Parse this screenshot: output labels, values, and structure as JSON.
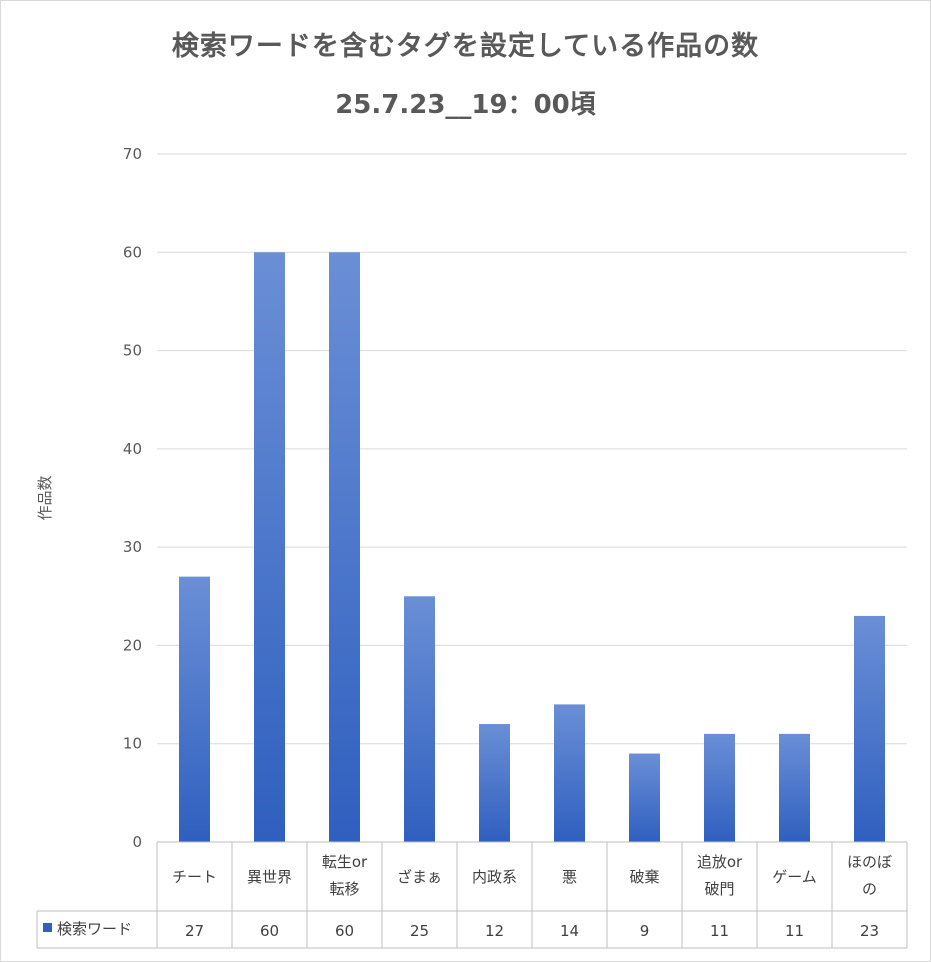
{
  "chart_data": {
    "type": "bar",
    "title": "検索ワードを含むタグを設定している作品の数",
    "subtitle": "25.7.23__19：00頃",
    "ylabel": "作品数",
    "xlabel": "",
    "ylim": [
      0,
      70
    ],
    "yticks": [
      0,
      10,
      20,
      30,
      40,
      50,
      60,
      70
    ],
    "grid": true,
    "categories": [
      [
        "チート"
      ],
      [
        "異世界"
      ],
      [
        "転生or",
        "転移"
      ],
      [
        "ざまぁ"
      ],
      [
        "内政系"
      ],
      [
        "悪"
      ],
      [
        "破棄"
      ],
      [
        "追放or",
        "破門"
      ],
      [
        "ゲーム"
      ],
      [
        "ほのぼ",
        "の"
      ]
    ],
    "series": [
      {
        "name": "検索ワード",
        "values": [
          27,
          60,
          60,
          25,
          12,
          14,
          9,
          11,
          11,
          23
        ]
      }
    ],
    "legend": "data-table",
    "colors": {
      "bar_top": "#6a8fd6",
      "bar_bottom": "#2f5fbf",
      "grid": "#d9d9d9",
      "table_border": "#bfbfbf"
    }
  }
}
